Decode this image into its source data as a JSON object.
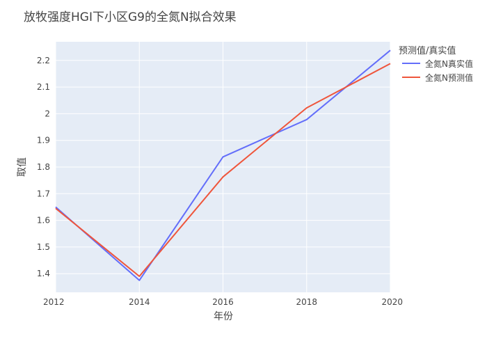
{
  "chart_data": {
    "type": "line",
    "title": "放牧强度HGI下小区G9的全氮N拟合效果",
    "xlabel": "年份",
    "ylabel": "取值",
    "x": [
      2012,
      2014,
      2016,
      2018,
      2020
    ],
    "xlim": [
      2012,
      2020
    ],
    "ylim": [
      1.33,
      2.27
    ],
    "x_ticks": [
      2012,
      2014,
      2016,
      2018,
      2020
    ],
    "y_ticks": [
      1.4,
      1.5,
      1.6,
      1.7,
      1.8,
      1.9,
      2,
      2.1,
      2.2
    ],
    "y_tick_labels": [
      "1.4",
      "1.5",
      "1.6",
      "1.7",
      "1.8",
      "1.9",
      "2",
      "2.1",
      "2.2"
    ],
    "grid": true,
    "legend_title": "预测值/真实值",
    "legend_position": "right",
    "series": [
      {
        "name": "全氮N真实值",
        "color": "#636efa",
        "values": [
          1.65,
          1.375,
          1.838,
          1.978,
          2.238
        ]
      },
      {
        "name": "全氮N预测值",
        "color": "#ef553b",
        "values": [
          1.645,
          1.39,
          1.763,
          2.022,
          2.188
        ]
      }
    ]
  }
}
